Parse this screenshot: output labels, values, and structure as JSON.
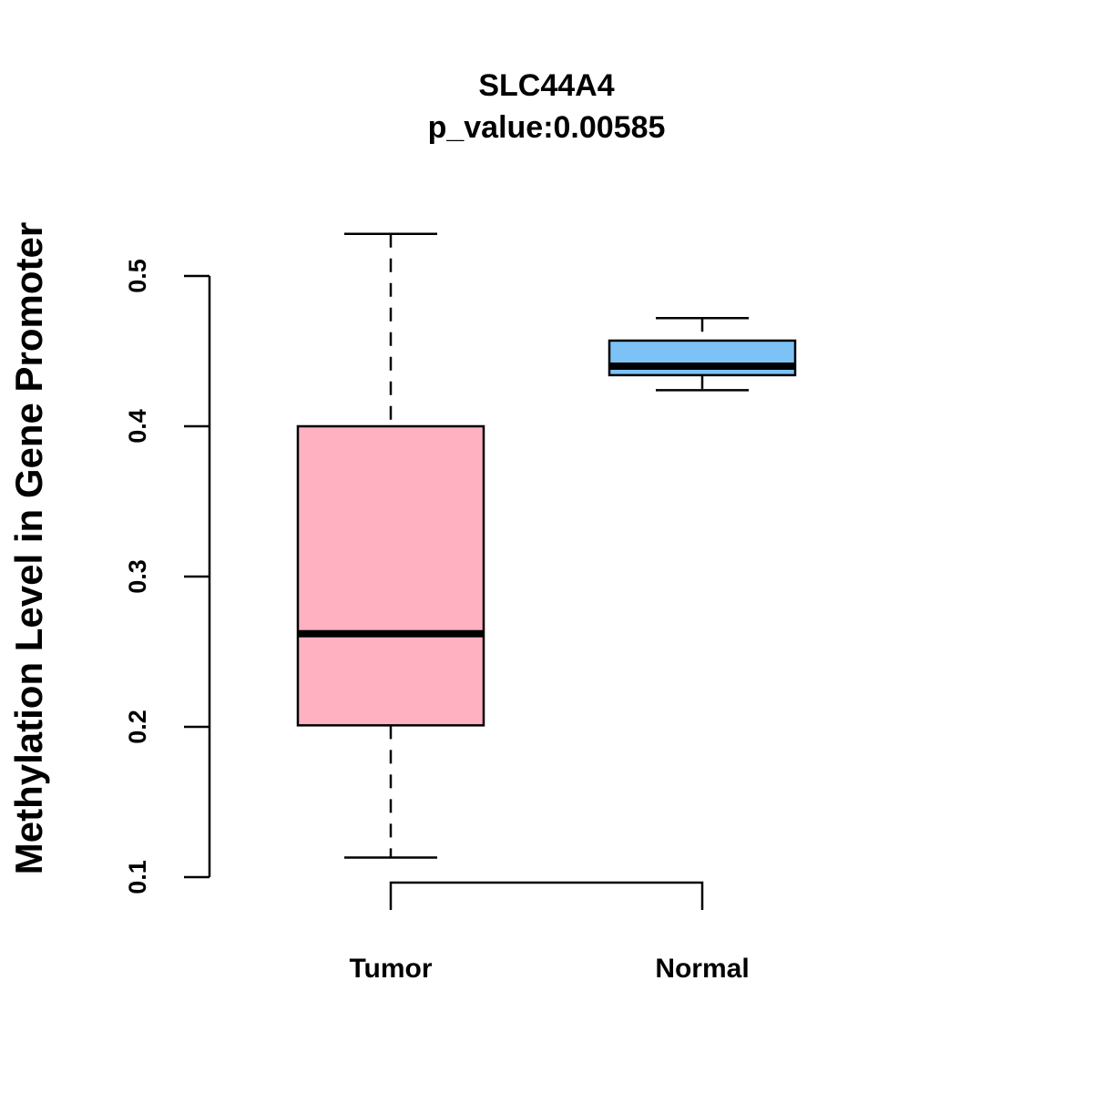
{
  "chart_data": {
    "type": "boxplot",
    "title": "SLC44A4",
    "subtitle": "p_value:0.00585",
    "xlabel": "",
    "ylabel": "Methylation Level in Gene Promoter",
    "ylim": [
      0.1,
      0.5
    ],
    "yticks": [
      "0.1",
      "0.2",
      "0.3",
      "0.4",
      "0.5"
    ],
    "categories": [
      "Tumor",
      "Normal"
    ],
    "boxes": [
      {
        "category": "Tumor",
        "whisker_low": 0.113,
        "q1": 0.201,
        "median": 0.262,
        "q3": 0.4,
        "whisker_high": 0.528,
        "color": "#FFB1C2"
      },
      {
        "category": "Normal",
        "whisker_low": 0.424,
        "q1": 0.434,
        "median": 0.44,
        "q3": 0.457,
        "whisker_high": 0.472,
        "color": "#7DC2F5"
      }
    ],
    "significance_bracket": {
      "from": "Tumor",
      "to": "Normal",
      "label": ""
    },
    "grid": false,
    "legend": "none"
  }
}
